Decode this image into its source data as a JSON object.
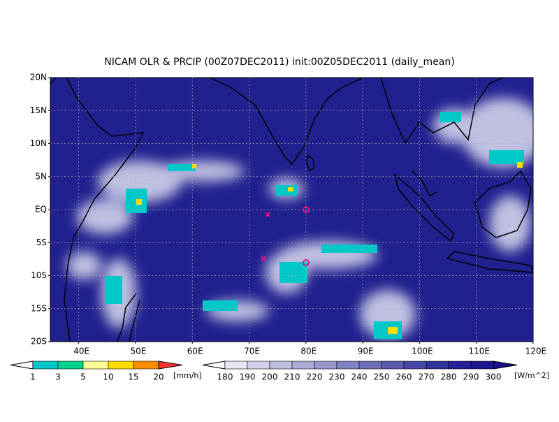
{
  "map": {
    "title": "NICAM OLR & PRCIP (00Z07DEC2011) init:00Z05DEC2011 (daily_mean)",
    "lon_range": [
      35,
      120
    ],
    "lat_range": [
      -20,
      20
    ],
    "lat_ticks": [
      {
        "value": 20,
        "label": "20N"
      },
      {
        "value": 15,
        "label": "15N"
      },
      {
        "value": 10,
        "label": "10N"
      },
      {
        "value": 5,
        "label": "5N"
      },
      {
        "value": 0,
        "label": "EQ"
      },
      {
        "value": -5,
        "label": "5S"
      },
      {
        "value": -10,
        "label": "10S"
      },
      {
        "value": -15,
        "label": "15S"
      },
      {
        "value": -20,
        "label": "20S"
      }
    ],
    "lon_ticks": [
      {
        "value": 40,
        "label": "40E"
      },
      {
        "value": 50,
        "label": "50E"
      },
      {
        "value": 60,
        "label": "60E"
      },
      {
        "value": 70,
        "label": "70E"
      },
      {
        "value": 80,
        "label": "80E"
      },
      {
        "value": 90,
        "label": "90E"
      },
      {
        "value": 100,
        "label": "100E"
      },
      {
        "value": 110,
        "label": "110E"
      },
      {
        "value": 120,
        "label": "120E"
      }
    ],
    "grid": true,
    "precip_legend": {
      "levels": [
        1,
        3,
        5,
        10,
        15,
        20
      ],
      "colors": [
        "#ffffff",
        "#00c8c8",
        "#00d28c",
        "#ffff96",
        "#ffdc00",
        "#ff8c00",
        "#ff3232"
      ],
      "unit": "[mm/h]"
    },
    "olr_legend": {
      "levels": [
        180,
        190,
        200,
        210,
        220,
        230,
        240,
        250,
        260,
        270,
        280,
        290,
        300
      ],
      "colors": [
        "#ffffff",
        "#e6e6f5",
        "#d2d2eb",
        "#bebee1",
        "#aaaad7",
        "#9696cd",
        "#8282c3",
        "#6e6eb9",
        "#5a5aaf",
        "#4646a5",
        "#32329b",
        "#281e96",
        "#1e1491",
        "#19118c"
      ],
      "unit": "[W/m^2]"
    }
  }
}
